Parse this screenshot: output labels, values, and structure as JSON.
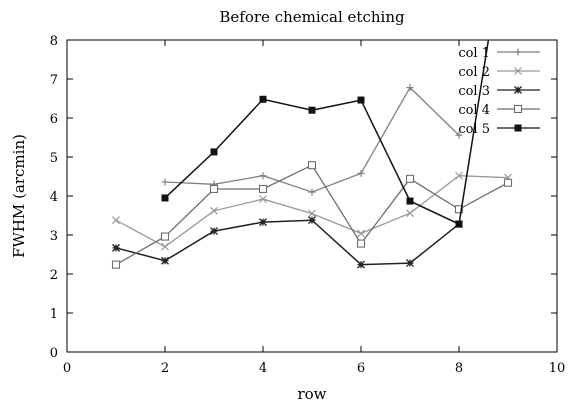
{
  "chart_data": {
    "type": "line",
    "title": "Before chemical etching",
    "xlabel": "row",
    "ylabel": "FWHM (arcmin)",
    "xlim": [
      0,
      10
    ],
    "ylim": [
      0,
      8
    ],
    "xticks": [
      0,
      2,
      4,
      6,
      8,
      10
    ],
    "yticks": [
      0,
      1,
      2,
      3,
      4,
      5,
      6,
      7,
      8
    ],
    "grid": false,
    "legend_position": "top-right",
    "series": [
      {
        "name": "col 1",
        "color": "#808080",
        "marker": "plus",
        "points": [
          [
            2,
            4.36
          ],
          [
            3,
            4.3
          ],
          [
            4,
            4.52
          ],
          [
            5,
            4.1
          ],
          [
            6,
            4.58
          ],
          [
            7,
            6.78
          ],
          [
            8,
            5.56
          ]
        ]
      },
      {
        "name": "col 2",
        "color": "#999999",
        "marker": "cross",
        "points": [
          [
            1,
            3.38
          ],
          [
            2,
            2.7
          ],
          [
            3,
            3.62
          ],
          [
            4,
            3.92
          ],
          [
            5,
            3.55
          ],
          [
            6,
            3.04
          ],
          [
            7,
            3.56
          ],
          [
            8,
            4.52
          ],
          [
            9,
            4.47
          ]
        ]
      },
      {
        "name": "col 3",
        "color": "#222222",
        "marker": "star",
        "points": [
          [
            1,
            2.67
          ],
          [
            2,
            2.34
          ],
          [
            3,
            3.1
          ],
          [
            4,
            3.33
          ],
          [
            5,
            3.38
          ],
          [
            6,
            2.24
          ],
          [
            7,
            2.28
          ],
          [
            8,
            3.28
          ]
        ]
      },
      {
        "name": "col 4",
        "color": "#6e6e6e",
        "marker": "open-square",
        "points": [
          [
            1,
            2.24
          ],
          [
            2,
            2.96
          ],
          [
            3,
            4.18
          ],
          [
            4,
            4.18
          ],
          [
            5,
            4.79
          ],
          [
            6,
            2.78
          ],
          [
            7,
            4.44
          ],
          [
            8,
            3.66
          ],
          [
            9,
            4.34
          ]
        ]
      },
      {
        "name": "col 5",
        "color": "#111111",
        "marker": "filled-square",
        "points": [
          [
            2,
            3.95
          ],
          [
            3,
            5.13
          ],
          [
            4,
            6.48
          ],
          [
            5,
            6.2
          ],
          [
            6,
            6.46
          ],
          [
            7,
            3.87
          ],
          [
            8,
            3.28
          ],
          [
            8.6,
            8.0
          ]
        ]
      }
    ]
  }
}
